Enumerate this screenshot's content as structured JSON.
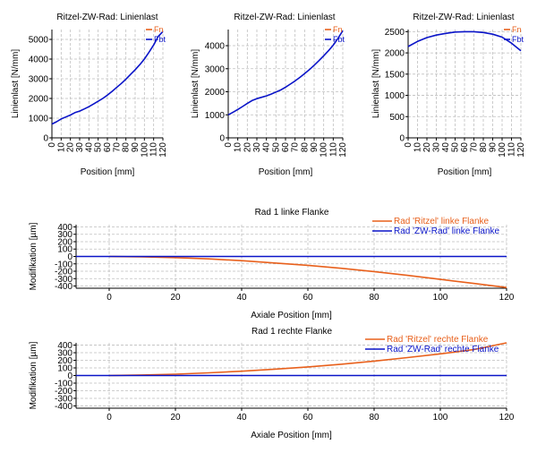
{
  "colors": {
    "orange": "#E8601C",
    "blue": "#0A14C8",
    "grid": "#BFBFBF"
  },
  "chart_data": [
    {
      "type": "line",
      "title": "Ritzel-ZW-Rad: Linienlast",
      "xlabel": "Position [mm]",
      "ylabel": "Linienlast [N/mm]",
      "xlim": [
        0,
        120
      ],
      "ylim": [
        0,
        5500
      ],
      "x_ticks": [
        0,
        10,
        20,
        30,
        40,
        50,
        60,
        70,
        80,
        90,
        100,
        110,
        120
      ],
      "y_ticks": [
        0,
        1000,
        2000,
        3000,
        4000,
        5000
      ],
      "grid": true,
      "legend": "top-right",
      "series": [
        {
          "name": "Fn",
          "color": "#E8601C",
          "x": [],
          "values": []
        },
        {
          "name": "Fbt",
          "color": "#0A14C8",
          "x": [
            0,
            5,
            10,
            15,
            20,
            25,
            30,
            35,
            40,
            45,
            50,
            55,
            60,
            65,
            70,
            75,
            80,
            85,
            90,
            95,
            100,
            105,
            110,
            115,
            120
          ],
          "values": [
            700,
            820,
            960,
            1060,
            1160,
            1280,
            1360,
            1470,
            1580,
            1720,
            1860,
            2000,
            2170,
            2360,
            2560,
            2760,
            2980,
            3220,
            3460,
            3720,
            4000,
            4350,
            4720,
            5150,
            5400
          ]
        }
      ]
    },
    {
      "type": "line",
      "title": "Ritzel-ZW-Rad: Linienlast",
      "xlabel": "Position [mm]",
      "ylabel": "Linienlast [N/mm]",
      "xlim": [
        0,
        120
      ],
      "ylim": [
        0,
        4700
      ],
      "x_ticks": [
        0,
        10,
        20,
        30,
        40,
        50,
        60,
        70,
        80,
        90,
        100,
        110,
        120
      ],
      "y_ticks": [
        0,
        1000,
        2000,
        3000,
        4000
      ],
      "grid": true,
      "legend": "top-right",
      "series": [
        {
          "name": "Fn",
          "color": "#E8601C",
          "x": [],
          "values": []
        },
        {
          "name": "Fbt",
          "color": "#0A14C8",
          "x": [
            0,
            5,
            10,
            15,
            20,
            25,
            30,
            35,
            40,
            45,
            50,
            55,
            60,
            65,
            70,
            75,
            80,
            85,
            90,
            95,
            100,
            105,
            110,
            115,
            120
          ],
          "values": [
            1000,
            1110,
            1230,
            1360,
            1490,
            1620,
            1700,
            1760,
            1820,
            1900,
            1990,
            2080,
            2200,
            2330,
            2470,
            2620,
            2790,
            2960,
            3150,
            3350,
            3560,
            3780,
            4020,
            4320,
            4650
          ]
        }
      ]
    },
    {
      "type": "line",
      "title": "Ritzel-ZW-Rad: Linienlast",
      "xlabel": "Position [mm]",
      "ylabel": "Linienlast [N/mm]",
      "xlim": [
        0,
        120
      ],
      "ylim": [
        0,
        2550
      ],
      "x_ticks": [
        0,
        10,
        20,
        30,
        40,
        50,
        60,
        70,
        80,
        90,
        100,
        110,
        120
      ],
      "y_ticks": [
        0,
        500,
        1000,
        1500,
        2000,
        2500
      ],
      "grid": true,
      "legend": "top-right",
      "series": [
        {
          "name": "Fn",
          "color": "#E8601C",
          "x": [],
          "values": []
        },
        {
          "name": "Fbt",
          "color": "#0A14C8",
          "x": [
            0,
            10,
            20,
            30,
            40,
            50,
            60,
            70,
            80,
            90,
            100,
            110,
            120
          ],
          "values": [
            2150,
            2270,
            2360,
            2420,
            2460,
            2490,
            2500,
            2500,
            2480,
            2440,
            2370,
            2230,
            2050
          ]
        }
      ]
    },
    {
      "type": "line",
      "title": "Rad 1 linke Flanke",
      "xlabel": "Axiale Position [mm]",
      "ylabel": "Modifikation [µm]",
      "xlim": [
        -10,
        120
      ],
      "ylim": [
        -430,
        430
      ],
      "x_ticks": [
        0,
        20,
        40,
        60,
        80,
        100,
        120
      ],
      "y_ticks": [
        -400,
        -300,
        -200,
        -100,
        0,
        100,
        200,
        300,
        400
      ],
      "grid": true,
      "legend": "top-right",
      "series": [
        {
          "name": "Rad 'Ritzel' linke Flanke",
          "color": "#E8601C",
          "x": [
            0,
            10,
            20,
            30,
            40,
            50,
            60,
            70,
            80,
            90,
            100,
            110,
            120
          ],
          "values": [
            0,
            -6,
            -16,
            -33,
            -57,
            -88,
            -120,
            -160,
            -205,
            -255,
            -310,
            -365,
            -420
          ]
        },
        {
          "name": "Rad 'ZW-Rad' linke Flanke",
          "color": "#0A14C8",
          "x": [
            -10,
            120
          ],
          "values": [
            0,
            0
          ]
        }
      ]
    },
    {
      "type": "line",
      "title": "Rad 1 rechte Flanke",
      "xlabel": "Axiale Position [mm]",
      "ylabel": "Modifikation [µm]",
      "xlim": [
        -10,
        120
      ],
      "ylim": [
        -430,
        430
      ],
      "x_ticks": [
        0,
        20,
        40,
        60,
        80,
        100,
        120
      ],
      "y_ticks": [
        -400,
        -300,
        -200,
        -100,
        0,
        100,
        200,
        300,
        400
      ],
      "grid": true,
      "legend": "top-right",
      "series": [
        {
          "name": "Rad 'Ritzel' rechte Flanke",
          "color": "#E8601C",
          "x": [
            0,
            10,
            20,
            30,
            40,
            50,
            60,
            70,
            80,
            90,
            100,
            110,
            120
          ],
          "values": [
            0,
            7,
            18,
            35,
            57,
            84,
            113,
            148,
            190,
            236,
            285,
            340,
            430
          ]
        },
        {
          "name": "Rad 'ZW-Rad' rechte Flanke",
          "color": "#0A14C8",
          "x": [
            -10,
            120
          ],
          "values": [
            0,
            0
          ]
        }
      ]
    }
  ]
}
